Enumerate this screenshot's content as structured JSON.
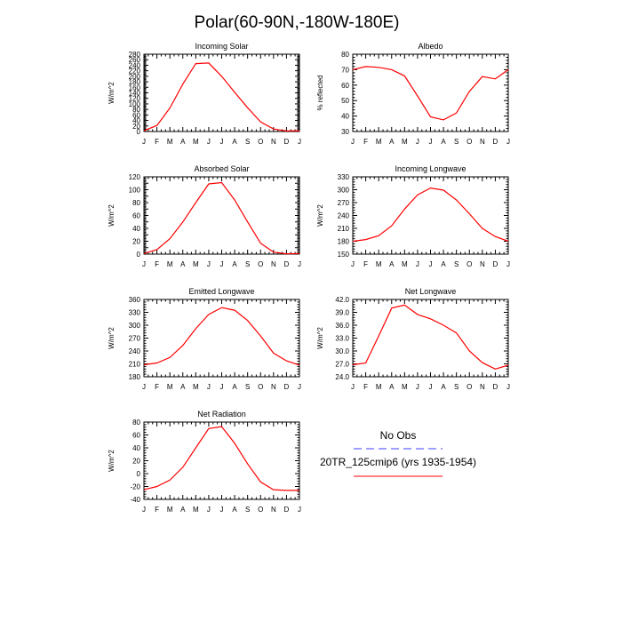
{
  "title": "Polar(60-90N,-180W-180E)",
  "legend": {
    "obs_label": "No Obs",
    "obs_color": "#6666ff",
    "model_label": "20TR_125cmip6 (yrs 1935-1954)",
    "model_color": "#ff0000"
  },
  "month_labels": [
    "J",
    "F",
    "M",
    "A",
    "M",
    "J",
    "J",
    "A",
    "S",
    "O",
    "N",
    "D",
    "J"
  ],
  "chart_data": [
    {
      "type": "line",
      "title": "Incoming Solar",
      "xlabel": "",
      "ylabel": "W/m^2",
      "ylim": [
        0,
        280
      ],
      "yticks": [
        0,
        20,
        40,
        60,
        80,
        100,
        120,
        140,
        160,
        180,
        200,
        220,
        240,
        260,
        280
      ],
      "ytick_labels": [
        "0",
        "20",
        "40",
        "60",
        "80",
        "100",
        "120",
        "140",
        "160",
        "180",
        "200",
        "220",
        "240",
        "260",
        "280"
      ],
      "categories": [
        "J",
        "F",
        "M",
        "A",
        "M",
        "J",
        "J",
        "A",
        "S",
        "O",
        "N",
        "D",
        "J"
      ],
      "series": [
        {
          "name": "20TR_125cmip6 (yrs 1935-1954)",
          "values": [
            3,
            22,
            85,
            172,
            246,
            248,
            200,
            142,
            86,
            35,
            9,
            2,
            3
          ]
        }
      ]
    },
    {
      "type": "line",
      "title": "Albedo",
      "xlabel": "",
      "ylabel": "% reflected",
      "ylim": [
        30,
        80
      ],
      "yticks": [
        30,
        40,
        50,
        60,
        70,
        80
      ],
      "ytick_labels": [
        "30",
        "40",
        "50",
        "60",
        "70",
        "80"
      ],
      "categories": [
        "J",
        "F",
        "M",
        "A",
        "M",
        "J",
        "J",
        "A",
        "S",
        "O",
        "N",
        "D",
        "J"
      ],
      "series": [
        {
          "name": "20TR_125cmip6 (yrs 1935-1954)",
          "values": [
            70,
            72,
            71.5,
            70,
            66,
            53,
            39.5,
            37.5,
            42,
            56,
            65.5,
            64,
            70
          ]
        }
      ]
    },
    {
      "type": "line",
      "title": "Absorbed Solar",
      "xlabel": "",
      "ylabel": "W/m^2",
      "ylim": [
        0,
        120
      ],
      "yticks": [
        0,
        10,
        20,
        30,
        40,
        50,
        60,
        70,
        80,
        90,
        100,
        110,
        120
      ],
      "ytick_labels": [
        "0",
        "",
        "20",
        "",
        "40",
        "",
        "60",
        "",
        "80",
        "",
        "100",
        "",
        "120"
      ],
      "categories": [
        "J",
        "F",
        "M",
        "A",
        "M",
        "J",
        "J",
        "A",
        "S",
        "O",
        "N",
        "D",
        "J"
      ],
      "series": [
        {
          "name": "20TR_125cmip6 (yrs 1935-1954)",
          "values": [
            1,
            7,
            24,
            50,
            80,
            109,
            111,
            84,
            50,
            17,
            3,
            0.5,
            1
          ]
        }
      ]
    },
    {
      "type": "line",
      "title": "Incoming Longwave",
      "xlabel": "",
      "ylabel": "W/m^2",
      "ylim": [
        150,
        330
      ],
      "yticks": [
        150,
        180,
        210,
        240,
        270,
        300,
        330
      ],
      "ytick_labels": [
        "150",
        "180",
        "210",
        "240",
        "270",
        "300",
        "330"
      ],
      "categories": [
        "J",
        "F",
        "M",
        "A",
        "M",
        "J",
        "J",
        "A",
        "S",
        "O",
        "N",
        "D",
        "J"
      ],
      "series": [
        {
          "name": "20TR_125cmip6 (yrs 1935-1954)",
          "values": [
            180,
            184,
            193,
            216,
            255,
            288,
            304,
            299,
            276,
            244,
            210,
            191,
            180
          ]
        }
      ]
    },
    {
      "type": "line",
      "title": "Emitted Longwave",
      "xlabel": "",
      "ylabel": "W/m^2",
      "ylim": [
        180,
        360
      ],
      "yticks": [
        180,
        210,
        240,
        270,
        300,
        330,
        360
      ],
      "ytick_labels": [
        "180",
        "210",
        "240",
        "270",
        "300",
        "330",
        "360"
      ],
      "categories": [
        "J",
        "F",
        "M",
        "A",
        "M",
        "J",
        "J",
        "A",
        "S",
        "O",
        "N",
        "D",
        "J"
      ],
      "series": [
        {
          "name": "20TR_125cmip6 (yrs 1935-1954)",
          "values": [
            208,
            212,
            225,
            253,
            292,
            325,
            341,
            335,
            311,
            275,
            235,
            217,
            207
          ]
        }
      ]
    },
    {
      "type": "line",
      "title": "Net Longwave",
      "xlabel": "",
      "ylabel": "W/m^2",
      "ylim": [
        24,
        42
      ],
      "yticks": [
        24,
        27,
        30,
        33,
        36,
        39,
        42
      ],
      "ytick_labels": [
        "24.0",
        "27.0",
        "30.0",
        "33.0",
        "36.0",
        "39.0",
        "42.0"
      ],
      "categories": [
        "J",
        "F",
        "M",
        "A",
        "M",
        "J",
        "J",
        "A",
        "S",
        "O",
        "N",
        "D",
        "J"
      ],
      "series": [
        {
          "name": "20TR_125cmip6 (yrs 1935-1954)",
          "values": [
            26.8,
            27.2,
            33.5,
            40,
            40.7,
            38.5,
            37.5,
            36,
            34.2,
            30,
            27.3,
            25.8,
            26.7
          ]
        }
      ]
    },
    {
      "type": "line",
      "title": "Net Radiation",
      "xlabel": "",
      "ylabel": "W/m^2",
      "ylim": [
        -40,
        80
      ],
      "yticks": [
        -40,
        -20,
        0,
        20,
        40,
        60,
        80
      ],
      "ytick_labels": [
        "-40",
        "-20",
        "0",
        "20",
        "40",
        "60",
        "80"
      ],
      "categories": [
        "J",
        "F",
        "M",
        "A",
        "M",
        "J",
        "J",
        "A",
        "S",
        "O",
        "N",
        "D",
        "J"
      ],
      "series": [
        {
          "name": "20TR_125cmip6 (yrs 1935-1954)",
          "values": [
            -25,
            -20,
            -10,
            10,
            40,
            70,
            73,
            47,
            15,
            -13,
            -25,
            -26,
            -26
          ]
        }
      ]
    }
  ]
}
